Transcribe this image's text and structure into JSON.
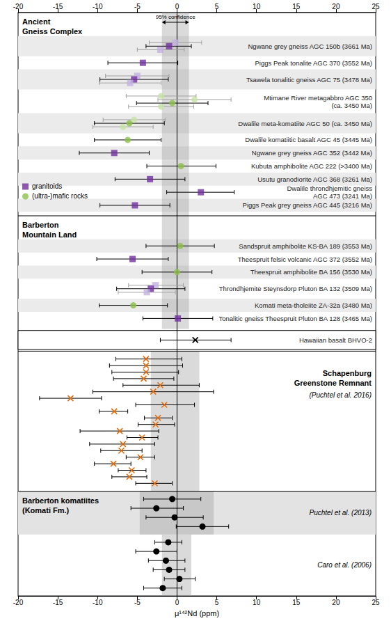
{
  "chart_data": {
    "type": "scatter",
    "x_label": "μ¹⁴²Nd (ppm)",
    "xlim": [
      -20,
      25
    ],
    "xticks": [
      -20,
      -15,
      -10,
      -5,
      0,
      5,
      10,
      15,
      20,
      25
    ],
    "grid": false,
    "reference_x": 0,
    "legend": "left",
    "series": [
      {
        "name": "granitoids",
        "color": "#7030a0",
        "marker": "square"
      },
      {
        "name": "(ultra-)mafic rocks",
        "color": "#8cbf4a",
        "marker": "circle"
      }
    ],
    "sections": [
      {
        "title": "Ancient\nGneiss Complex",
        "band": [
          -1.9,
          1.5
        ],
        "band_label": "95% confidence",
        "rows": [
          {
            "label": "Ngwane grey gneiss AGC 150b (3661 Ma)",
            "points": [
              {
                "series": "granitoids",
                "x": -0.2,
                "error": [
                  -3.5,
                  3.1
                ],
                "color": "#c2b0e0"
              },
              {
                "series": "granitoids",
                "x": -1.0,
                "error": [
                  -3.9,
                  1.8
                ]
              },
              {
                "series": "granitoids",
                "x": -2.1,
                "error": [
                  -5.0,
                  0.9
                ],
                "color": "#c2b0e0"
              }
            ]
          },
          {
            "label": "Piggs Peak tonalite AGC 370 (3552 Ma)",
            "points": [
              {
                "series": "granitoids",
                "x": -4.3,
                "error": [
                  -8.7,
                  0.1
                ]
              }
            ]
          },
          {
            "label": "Tsawela tonalitic gneiss AGC 75 (3478 Ma)",
            "points": [
              {
                "series": "granitoids",
                "x": -5.0,
                "error": [
                  -9.0,
                  -1.0
                ],
                "color": "#c2b0e0"
              },
              {
                "series": "granitoids",
                "x": -5.4,
                "error": [
                  -9.7,
                  -1.1
                ]
              },
              {
                "series": "granitoids",
                "x": -5.9,
                "error": [
                  -9.8,
                  -2.0
                ],
                "color": "#c2b0e0"
              }
            ]
          },
          {
            "label": "Mtimane River metagabbro AGC 350\n(ca. 3450 Ma)",
            "points": [
              {
                "series": "(ultra-)mafic rocks",
                "x": -2.0,
                "error": [
                  -6.4,
                  2.4
                ],
                "color": "#c8e2a8"
              },
              {
                "series": "(ultra-)mafic rocks",
                "x": 2.2,
                "error": [
                  -2.4,
                  6.8
                ],
                "color": "#c8e2a8"
              },
              {
                "series": "(ultra-)mafic rocks",
                "x": -0.6,
                "error": [
                  -5.1,
                  3.9
                ]
              },
              {
                "series": "(ultra-)mafic rocks",
                "x": -2.0,
                "error": [
                  -6.1,
                  2.1
                ],
                "color": "#c8e2a8"
              }
            ]
          },
          {
            "label": "Dwalile meta-komatiite AGC 50 (ca. 3450 Ma)",
            "points": [
              {
                "series": "(ultra-)mafic rocks",
                "x": -5.4,
                "error": [
                  -9.3,
                  -1.5
                ],
                "color": "#c8e2a8"
              },
              {
                "series": "(ultra-)mafic rocks",
                "x": -6.0,
                "error": [
                  -10.4,
                  -1.6
                ]
              },
              {
                "series": "(ultra-)mafic rocks",
                "x": -6.8,
                "error": [
                  -10.6,
                  -3.0
                ],
                "color": "#c8e2a8"
              }
            ]
          },
          {
            "label": "Dwalile komatiitic basalt AGC 45 (3445 Ma)",
            "points": [
              {
                "series": "(ultra-)mafic rocks",
                "x": -6.2,
                "error": [
                  -10.4,
                  -2.0
                ]
              }
            ]
          },
          {
            "label": "Ngwane grey gneiss AGC 352 (3442 Ma)",
            "points": [
              {
                "series": "granitoids",
                "x": -7.9,
                "error": [
                  -12.3,
                  -3.5
                ]
              }
            ]
          },
          {
            "label": "Kubuta amphibolite AGC 222 (>3400 Ma)",
            "points": [
              {
                "series": "(ultra-)mafic rocks",
                "x": 0.5,
                "error": [
                  -3.8,
                  4.9
                ]
              }
            ]
          },
          {
            "label": "Usutu granodiorite AGC 368 (3261 Ma)",
            "points": [
              {
                "series": "granitoids",
                "x": -3.4,
                "error": [
                  -7.8,
                  1.0
                ]
              }
            ]
          },
          {
            "label": "Dwalile throndhjemitic gneiss\nAGC 473 (3241 Ma)",
            "points": [
              {
                "series": "granitoids",
                "x": 3.0,
                "error": [
                  -1.3,
                  7.2
                ]
              }
            ]
          },
          {
            "label": "Piggs Peak grey gneiss AGC 445 (3216 Ma)",
            "points": [
              {
                "series": "granitoids",
                "x": -5.3,
                "error": [
                  -9.7,
                  -0.9
                ]
              }
            ]
          }
        ]
      },
      {
        "title": "Barberton\nMountain Land",
        "band": [
          -1.9,
          1.5
        ],
        "rows": [
          {
            "label": "Sandspruit amphibolite KS-BA 189 (3553 Ma)",
            "points": [
              {
                "series": "(ultra-)mafic rocks",
                "x": 0.4,
                "error": [
                  -3.9,
                  4.7
                ]
              }
            ]
          },
          {
            "label": "Theespruit felsic volcanic AGC 372 (3552 Ma)",
            "points": [
              {
                "series": "granitoids",
                "x": -5.6,
                "error": [
                  -10.1,
                  -1.1
                ]
              }
            ]
          },
          {
            "label": "Theespruit amphibolite BA 156 (3530 Ma)",
            "points": [
              {
                "series": "(ultra-)mafic rocks",
                "x": 0.0,
                "error": [
                  -4.4,
                  4.4
                ]
              }
            ]
          },
          {
            "label": "Throndhjemite Steynsdorp Pluton BA 132 (3509 Ma)",
            "points": [
              {
                "series": "granitoids",
                "x": -2.7,
                "error": [
                  -6.1,
                  0.8
                ],
                "color": "#c2b0e0"
              },
              {
                "series": "granitoids",
                "x": -3.3,
                "error": [
                  -7.6,
                  1.0
                ]
              },
              {
                "series": "granitoids",
                "x": -3.8,
                "error": [
                  -7.4,
                  -0.2
                ],
                "color": "#c2b0e0"
              }
            ]
          },
          {
            "label": "Komati meta-tholeiite ZA-32a (3480 Ma)",
            "points": [
              {
                "series": "(ultra-)mafic rocks",
                "x": -5.5,
                "error": [
                  -9.8,
                  -1.2
                ]
              }
            ]
          },
          {
            "label": "Tonalitic gneiss Theespruit Pluton BA 128 (3465 Ma)",
            "points": [
              {
                "series": "granitoids",
                "x": 0.1,
                "error": [
                  -4.3,
                  4.5
                ]
              }
            ]
          }
        ]
      },
      {
        "marker": "x",
        "color": "#000000",
        "rows": [
          {
            "label": "Hawaiian basalt BHVO-2",
            "points": [
              {
                "x": 2.3,
                "error": [
                  -2.1,
                  6.8
                ]
              }
            ]
          }
        ]
      },
      {
        "title": "Schapenburg\nGreenstone Remnant",
        "citation": "(Puchtel et al. 2016)",
        "band": [
          -3.3,
          2.8
        ],
        "marker": "x",
        "color": "#e46c0a",
        "points": [
          {
            "x": -3.9,
            "error": [
              -7.7,
              0.6
            ]
          },
          {
            "x": -3.9,
            "error": [
              -8.5,
              0.7
            ]
          },
          {
            "x": -3.9,
            "error": [
              -8.2,
              0.2
            ]
          },
          {
            "x": -4.2,
            "error": [
              -8.0,
              -0.4
            ]
          },
          {
            "x": -2.1,
            "error": [
              -6.8,
              2.8
            ]
          },
          {
            "x": -3.0,
            "error": [
              -10.6,
              4.6
            ]
          },
          {
            "x": -13.4,
            "error": [
              -17.3,
              -9.5
            ]
          },
          {
            "x": -1.6,
            "error": [
              -5.2,
              2.2
            ]
          },
          {
            "x": -7.9,
            "error": [
              -9.8,
              -6.2
            ]
          },
          {
            "x": -2.4,
            "error": [
              -4.1,
              -0.6
            ]
          },
          {
            "x": -2.7,
            "error": [
              -4.9,
              -0.3
            ]
          },
          {
            "x": -7.2,
            "error": [
              -12.2,
              -2.3
            ]
          },
          {
            "x": -4.4,
            "error": [
              -6.3,
              -2.4
            ]
          },
          {
            "x": -6.8,
            "error": [
              -11.0,
              -2.8
            ]
          },
          {
            "x": -7.0,
            "error": [
              -9.6,
              -4.4
            ]
          },
          {
            "x": -4.6,
            "error": [
              -6.4,
              -2.8
            ]
          },
          {
            "x": -8.0,
            "error": [
              -10.4,
              -5.8
            ]
          },
          {
            "x": -5.7,
            "error": [
              -7.4,
              -3.9
            ]
          },
          {
            "x": -6.0,
            "error": [
              -8.2,
              -3.8
            ]
          },
          {
            "x": -2.8,
            "error": [
              -5.2,
              -0.6
            ]
          }
        ]
      },
      {
        "title": "Barberton komatiites\n(Komati Fm.)",
        "citation": "Puchtel et al. (2013)",
        "band": [
          -4.7,
          4.6
        ],
        "marker": "circle",
        "color": "#000000",
        "points": [
          {
            "x": -0.6,
            "error": [
              -4.2,
              3.0
            ]
          },
          {
            "x": -2.6,
            "error": [
              -5.8,
              0.8
            ]
          },
          {
            "x": -0.3,
            "error": [
              -3.9,
              3.3
            ]
          },
          {
            "x": 3.2,
            "error": [
              -0.1,
              6.5
            ]
          }
        ]
      },
      {
        "citation": "Caro et al. (2006)",
        "band": [
          -1.9,
          1.8
        ],
        "marker": "circle",
        "color": "#000000",
        "points": [
          {
            "x": -1.1,
            "error": [
              -2.8,
              0.6
            ]
          },
          {
            "x": -2.6,
            "error": [
              -5.2,
              0.0
            ]
          },
          {
            "x": -1.4,
            "error": [
              -3.6,
              1.0
            ]
          },
          {
            "x": -1.0,
            "error": [
              -3.0,
              1.0
            ]
          },
          {
            "x": 0.3,
            "error": [
              -1.6,
              2.3
            ]
          },
          {
            "x": -1.8,
            "error": [
              -4.2,
              0.6
            ]
          }
        ]
      }
    ]
  }
}
